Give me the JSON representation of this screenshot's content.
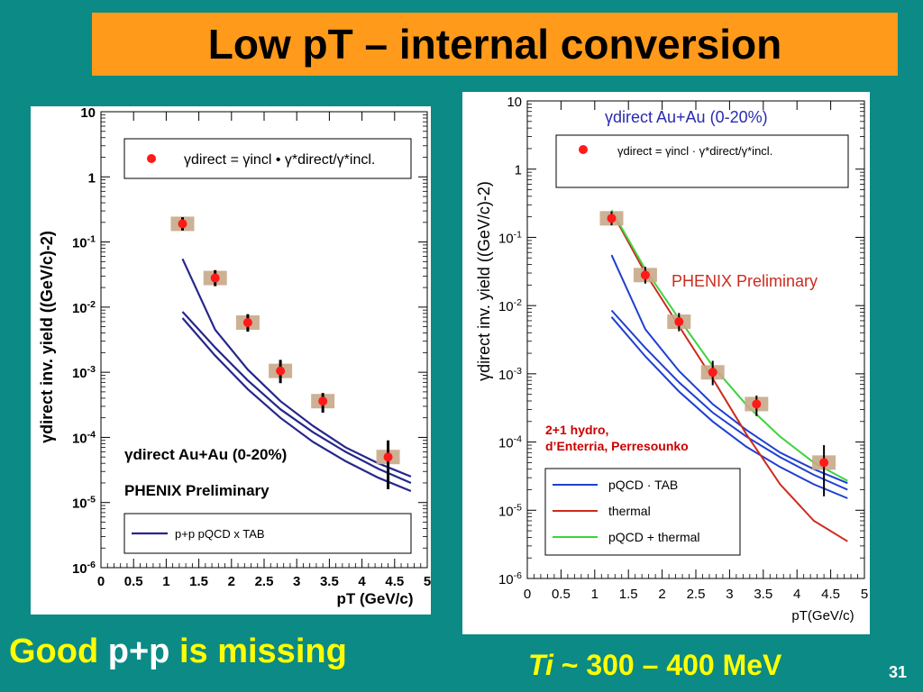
{
  "slide": {
    "title": "Low pT – internal conversion",
    "bottom_left": {
      "part1": "Good",
      "part2": "p+p",
      "part3": "is missing"
    },
    "bottom_right": {
      "symbol": "T",
      "subscript": "i",
      "text": " ~  300 – 400 MeV"
    },
    "page_number": "31"
  },
  "chart_data": [
    {
      "type": "scatter",
      "panel": "left",
      "ylabel": "γdirect inv. yield ((GeV/c)-2)",
      "xlabel": "pT (GeV/c)",
      "xlim": [
        0,
        5
      ],
      "ylim": [
        1e-06,
        10
      ],
      "yscale": "log",
      "x_ticks": [
        "0",
        "0.5",
        "1",
        "1.5",
        "2",
        "2.5",
        "3",
        "3.5",
        "4",
        "4.5",
        "5"
      ],
      "y_ticks": [
        "10",
        "1",
        "10-1",
        "10-2",
        "10-3",
        "10-4",
        "10-5",
        "10-6"
      ],
      "legend_formula": "γdirect = γincl • γ*direct/γ*incl.",
      "annotation_system": "γdirect  Au+Au (0-20%)",
      "annotation_preliminary": "PHENIX Preliminary",
      "legend_line": "p+p pQCD x TAB",
      "points": [
        {
          "x": 1.25,
          "y": 0.19,
          "ylo": 0.15,
          "yhi": 0.24
        },
        {
          "x": 1.75,
          "y": 0.028,
          "ylo": 0.021,
          "yhi": 0.037
        },
        {
          "x": 2.25,
          "y": 0.0058,
          "ylo": 0.0042,
          "yhi": 0.0078
        },
        {
          "x": 2.75,
          "y": 0.00105,
          "ylo": 0.00068,
          "yhi": 0.00155
        },
        {
          "x": 3.4,
          "y": 0.00036,
          "ylo": 0.00024,
          "yhi": 0.00048
        },
        {
          "x": 4.4,
          "y": 5e-05,
          "ylo": 1.6e-05,
          "yhi": 9e-05
        }
      ],
      "curves": [
        {
          "x": [
            1.25,
            1.75,
            2.25,
            2.75,
            3.25,
            3.75,
            4.25,
            4.75
          ],
          "y": [
            0.055,
            0.0045,
            0.0011,
            0.00036,
            0.00015,
            7e-05,
            4e-05,
            2.5e-05
          ]
        },
        {
          "x": [
            1.25,
            1.75,
            2.25,
            2.75,
            3.25,
            3.75,
            4.25,
            4.75
          ],
          "y": [
            0.0085,
            0.0024,
            0.00075,
            0.00027,
            0.00012,
            6e-05,
            3.3e-05,
            2e-05
          ]
        },
        {
          "x": [
            1.25,
            1.75,
            2.25,
            2.75,
            3.25,
            3.75,
            4.25,
            4.75
          ],
          "y": [
            0.0068,
            0.0018,
            0.00055,
            0.0002,
            8.5e-05,
            4.3e-05,
            2.4e-05,
            1.5e-05
          ]
        }
      ]
    },
    {
      "type": "scatter",
      "panel": "right",
      "ylabel": "γdirect inv. yield ((GeV/c)-2)",
      "xlabel": "pT(GeV/c)",
      "xlim": [
        0,
        5
      ],
      "ylim": [
        1e-06,
        10
      ],
      "yscale": "log",
      "x_ticks": [
        "0",
        "0.5",
        "1",
        "1.5",
        "2",
        "2.5",
        "3",
        "3.5",
        "4",
        "4.5",
        "5"
      ],
      "y_ticks": [
        "10",
        "1",
        "10-1",
        "10-2",
        "10-3",
        "10-4",
        "10-5",
        "10-6"
      ],
      "top_label": "γdirect Au+Au (0-20%)",
      "legend_formula": "γdirect = γincl · γ*direct/γ*incl.",
      "annotation_preliminary": "PHENIX Preliminary",
      "annotation_hydro_1": "2+1 hydro,",
      "annotation_hydro_2": "d’Enterria, Perresounko",
      "legend": [
        "pQCD · TAB",
        "thermal",
        "pQCD + thermal"
      ],
      "points": [
        {
          "x": 1.25,
          "y": 0.19,
          "ylo": 0.15,
          "yhi": 0.24
        },
        {
          "x": 1.75,
          "y": 0.028,
          "ylo": 0.021,
          "yhi": 0.037
        },
        {
          "x": 2.25,
          "y": 0.0058,
          "ylo": 0.0042,
          "yhi": 0.0078
        },
        {
          "x": 2.75,
          "y": 0.00105,
          "ylo": 0.00068,
          "yhi": 0.00155
        },
        {
          "x": 3.4,
          "y": 0.00036,
          "ylo": 0.00024,
          "yhi": 0.00048
        },
        {
          "x": 4.4,
          "y": 5e-05,
          "ylo": 1.6e-05,
          "yhi": 9e-05
        }
      ],
      "curves": [
        {
          "name": "pQCD · TAB",
          "color": "#1f3fd0",
          "x": [
            1.25,
            1.75,
            2.25,
            2.75,
            3.25,
            3.75,
            4.25,
            4.75
          ],
          "y": [
            0.055,
            0.0045,
            0.0011,
            0.00036,
            0.00015,
            7e-05,
            4e-05,
            2.5e-05
          ]
        },
        {
          "name": "pQCD · TAB",
          "color": "#1f3fd0",
          "x": [
            1.25,
            1.75,
            2.25,
            2.75,
            3.25,
            3.75,
            4.25,
            4.75
          ],
          "y": [
            0.0085,
            0.0024,
            0.00075,
            0.00027,
            0.00012,
            6e-05,
            3.3e-05,
            2e-05
          ]
        },
        {
          "name": "pQCD · TAB",
          "color": "#1f3fd0",
          "x": [
            1.25,
            1.75,
            2.25,
            2.75,
            3.25,
            3.75,
            4.25,
            4.75
          ],
          "y": [
            0.0068,
            0.0018,
            0.00055,
            0.0002,
            8.5e-05,
            4.3e-05,
            2.4e-05,
            1.5e-05
          ]
        },
        {
          "name": "thermal",
          "color": "#cc2b1d",
          "x": [
            1.25,
            1.75,
            2.25,
            2.75,
            3.25,
            3.75,
            4.25,
            4.75
          ],
          "y": [
            0.24,
            0.03,
            0.005,
            0.00085,
            0.00013,
            2.4e-05,
            7e-06,
            3.5e-06
          ]
        },
        {
          "name": "pQCD + thermal",
          "color": "#3dd43d",
          "x": [
            1.25,
            1.75,
            2.25,
            2.75,
            3.25,
            3.75,
            4.25,
            4.75
          ],
          "y": [
            0.25,
            0.034,
            0.0064,
            0.0013,
            0.00035,
            0.00012,
            5e-05,
            2.7e-05
          ]
        }
      ]
    }
  ]
}
